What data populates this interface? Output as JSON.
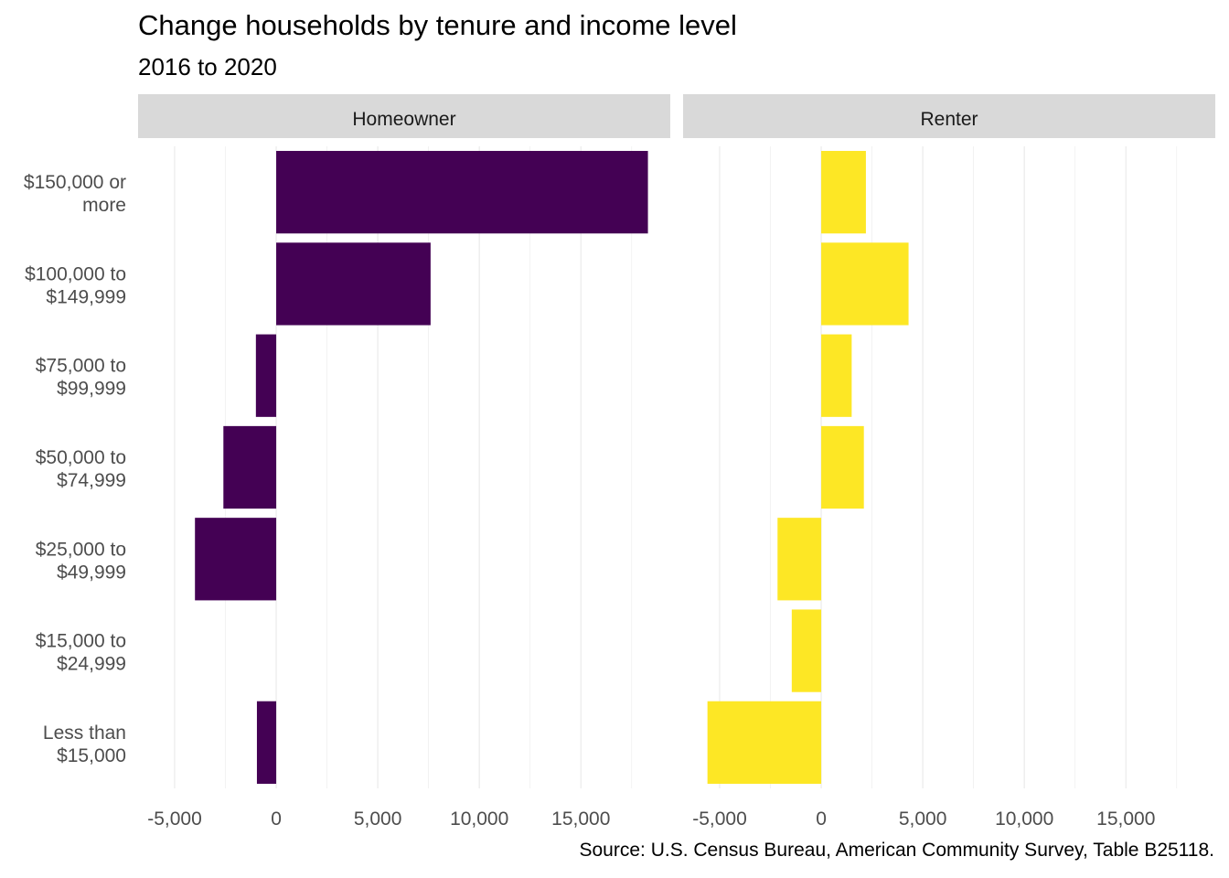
{
  "title": "Change households by tenure and income level",
  "subtitle": "2016 to 2020",
  "caption": "Source: U.S. Census Bureau, American Community Survey, Table B25118.",
  "colors": {
    "Homeowner": "#440154",
    "Renter": "#FDE725",
    "strip": "#D9D9D9",
    "grid": "#EBEBEB"
  },
  "chart_data": {
    "type": "bar",
    "orientation": "horizontal",
    "facets": [
      "Homeowner",
      "Renter"
    ],
    "categories": [
      [
        "$150,000 or",
        "more"
      ],
      [
        "$100,000 to",
        "$149,999"
      ],
      [
        "$75,000 to",
        "$99,999"
      ],
      [
        "$50,000 to",
        "$74,999"
      ],
      [
        "$25,000 to",
        "$49,999"
      ],
      [
        "$15,000 to",
        "$24,999"
      ],
      [
        "Less than",
        "$15,000"
      ]
    ],
    "series": [
      {
        "facet": "Homeowner",
        "values": [
          18300,
          7600,
          -1000,
          -2600,
          -4000,
          0,
          -950
        ]
      },
      {
        "facet": "Renter",
        "values": [
          2200,
          4300,
          1500,
          2100,
          -2150,
          -1450,
          -5600
        ]
      }
    ],
    "xlim": [
      -6800,
      19400
    ],
    "xticks": [
      -5000,
      0,
      5000,
      10000,
      15000
    ],
    "xtick_labels": [
      "-5,000",
      "0",
      "5,000",
      "10,000",
      "15,000"
    ],
    "grid": true
  }
}
